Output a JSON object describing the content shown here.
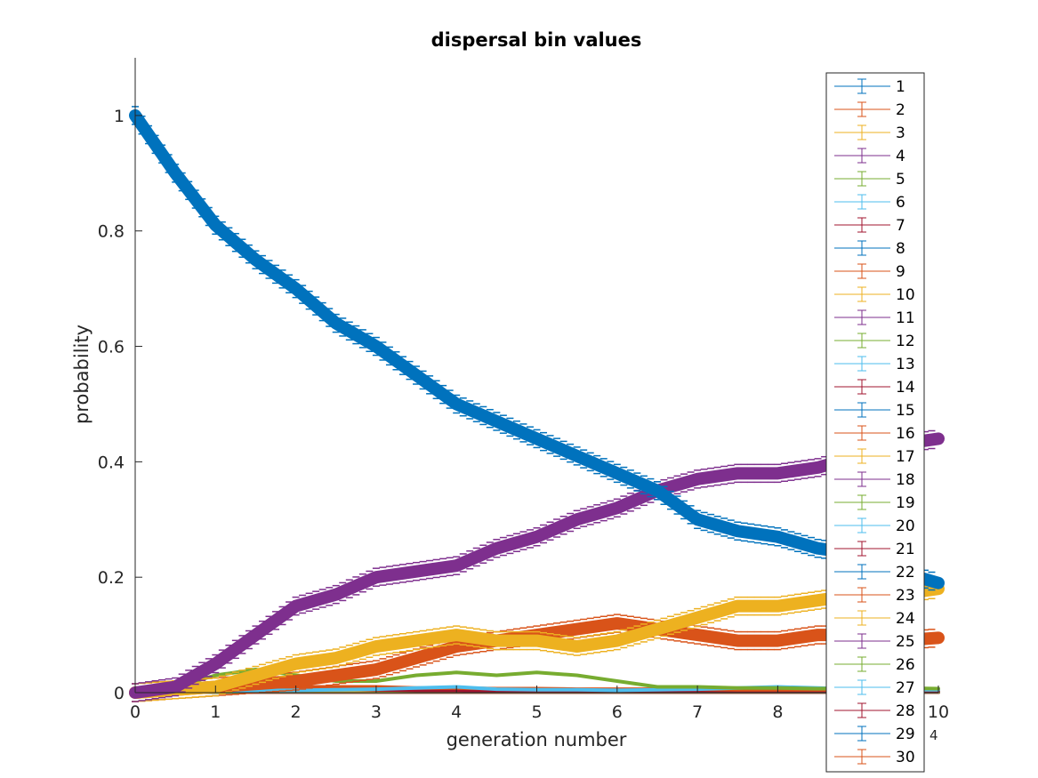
{
  "chart_data": {
    "type": "line",
    "title": "dispersal bin values",
    "xlabel": "generation number",
    "ylabel": "probability",
    "x_exponent_label": "4",
    "x_scale_note": "x values are in units of 10^4 generations",
    "xlim": [
      0,
      10
    ],
    "ylim": [
      0,
      1.1
    ],
    "xticks": [
      "0",
      "1",
      "2",
      "3",
      "4",
      "5",
      "6",
      "7",
      "8",
      "9",
      "10"
    ],
    "yticks": [
      "0",
      "0.2",
      "0.4",
      "0.6",
      "0.8",
      "1"
    ],
    "legend_position": "right (overlapping plot)",
    "x": [
      0,
      0.5,
      1,
      1.5,
      2,
      2.5,
      3,
      3.5,
      4,
      4.5,
      5,
      5.5,
      6,
      6.5,
      7,
      7.5,
      8,
      8.5,
      9,
      9.5,
      10
    ],
    "series": [
      {
        "name": "1",
        "color": "#0072BD",
        "values": [
          1.0,
          0.9,
          0.81,
          0.75,
          0.7,
          0.64,
          0.6,
          0.55,
          0.5,
          0.47,
          0.44,
          0.41,
          0.38,
          0.35,
          0.3,
          0.28,
          0.27,
          0.25,
          0.24,
          0.21,
          0.19
        ]
      },
      {
        "name": "2",
        "color": "#D95319",
        "values": [
          0,
          0.003,
          0.005,
          0.008,
          0.01,
          0.01,
          0.01,
          0.008,
          0.008,
          0.007,
          0.007,
          0.006,
          0.006,
          0.006,
          0.006,
          0.005,
          0.005,
          0.005,
          0.005,
          0.005,
          0.005
        ]
      },
      {
        "name": "3",
        "color": "#EDB120",
        "values": [
          0,
          0.005,
          0.01,
          0.03,
          0.05,
          0.06,
          0.08,
          0.09,
          0.1,
          0.09,
          0.09,
          0.08,
          0.09,
          0.11,
          0.13,
          0.15,
          0.15,
          0.16,
          0.17,
          0.17,
          0.18
        ]
      },
      {
        "name": "4",
        "color": "#7E2F8E",
        "values": [
          0,
          0.01,
          0.05,
          0.1,
          0.15,
          0.17,
          0.2,
          0.21,
          0.22,
          0.25,
          0.27,
          0.3,
          0.32,
          0.35,
          0.37,
          0.38,
          0.38,
          0.39,
          0.41,
          0.43,
          0.44
        ]
      },
      {
        "name": "5",
        "color": "#77AC30",
        "values": [
          0,
          0.01,
          0.03,
          0.04,
          0.03,
          0.02,
          0.02,
          0.03,
          0.035,
          0.03,
          0.035,
          0.03,
          0.02,
          0.01,
          0.01,
          0.008,
          0.008,
          0.007,
          0.008,
          0.008,
          0.007
        ]
      },
      {
        "name": "6",
        "color": "#4DBEEE",
        "values": [
          0,
          0.002,
          0.003,
          0.004,
          0.004,
          0.005,
          0.006,
          0.008,
          0.01,
          0.006,
          0.005,
          0.005,
          0.004,
          0.005,
          0.006,
          0.008,
          0.01,
          0.008,
          0.006,
          0.005,
          0.005
        ]
      },
      {
        "name": "7",
        "color": "#A2142F",
        "values": [
          0,
          0.002,
          0.004,
          0.006,
          0.008,
          0.006,
          0.005,
          0.004,
          0.004,
          0.003,
          0.003,
          0.003,
          0.003,
          0.003,
          0.003,
          0.003,
          0.003,
          0.003,
          0.003,
          0.003,
          0.003
        ]
      },
      {
        "name": "8",
        "color": "#0072BD",
        "values": [
          0,
          0.001,
          0.002,
          0.002,
          0.002,
          0.002,
          0.002,
          0.002,
          0.002,
          0.002,
          0.002,
          0.002,
          0.002,
          0.002,
          0.002,
          0.002,
          0.002,
          0.002,
          0.002,
          0.002,
          0.002
        ]
      },
      {
        "name": "9",
        "color": "#D95319",
        "values": [
          0,
          0.005,
          0.01,
          0.015,
          0.02,
          0.03,
          0.04,
          0.06,
          0.08,
          0.09,
          0.1,
          0.11,
          0.12,
          0.11,
          0.1,
          0.09,
          0.09,
          0.1,
          0.1,
          0.09,
          0.095
        ]
      },
      {
        "name": "10",
        "color": "#EDB120",
        "values": [
          0,
          0.001,
          0.002,
          0.003,
          0.003,
          0.003,
          0.004,
          0.004,
          0.004,
          0.004,
          0.004,
          0.004,
          0.004,
          0.004,
          0.004,
          0.004,
          0.004,
          0.004,
          0.004,
          0.004,
          0.004
        ]
      },
      {
        "name": "11",
        "color": "#7E2F8E",
        "values": [
          0,
          0.001,
          0.001,
          0.002,
          0.002,
          0.002,
          0.002,
          0.002,
          0.002,
          0.002,
          0.002,
          0.002,
          0.002,
          0.002,
          0.002,
          0.002,
          0.002,
          0.002,
          0.002,
          0.002,
          0.002
        ]
      },
      {
        "name": "12",
        "color": "#77AC30",
        "values": [
          0,
          0.001,
          0.001,
          0.002,
          0.002,
          0.002,
          0.002,
          0.002,
          0.002,
          0.002,
          0.002,
          0.002,
          0.002,
          0.002,
          0.002,
          0.002,
          0.002,
          0.002,
          0.002,
          0.002,
          0.002
        ]
      },
      {
        "name": "13",
        "color": "#4DBEEE",
        "values": [
          0,
          0.001,
          0.001,
          0.001,
          0.001,
          0.001,
          0.001,
          0.001,
          0.001,
          0.001,
          0.001,
          0.001,
          0.001,
          0.001,
          0.001,
          0.001,
          0.001,
          0.001,
          0.001,
          0.001,
          0.001
        ]
      },
      {
        "name": "14",
        "color": "#A2142F",
        "values": [
          0,
          0.001,
          0.001,
          0.001,
          0.001,
          0.001,
          0.001,
          0.001,
          0.001,
          0.001,
          0.001,
          0.001,
          0.001,
          0.001,
          0.001,
          0.001,
          0.001,
          0.001,
          0.001,
          0.001,
          0.001
        ]
      },
      {
        "name": "15",
        "color": "#0072BD",
        "values": [
          0,
          0.001,
          0.001,
          0.001,
          0.001,
          0.001,
          0.001,
          0.001,
          0.001,
          0.001,
          0.001,
          0.001,
          0.001,
          0.001,
          0.001,
          0.001,
          0.001,
          0.001,
          0.001,
          0.001,
          0.001
        ]
      },
      {
        "name": "16",
        "color": "#D95319",
        "values": [
          0,
          0.001,
          0.001,
          0.001,
          0.001,
          0.001,
          0.001,
          0.001,
          0.001,
          0.001,
          0.001,
          0.001,
          0.001,
          0.001,
          0.001,
          0.001,
          0.001,
          0.001,
          0.001,
          0.001,
          0.001
        ]
      },
      {
        "name": "17",
        "color": "#EDB120",
        "values": [
          0,
          0.001,
          0.001,
          0.001,
          0.001,
          0.001,
          0.001,
          0.001,
          0.001,
          0.001,
          0.001,
          0.001,
          0.001,
          0.001,
          0.001,
          0.001,
          0.001,
          0.001,
          0.001,
          0.001,
          0.001
        ]
      },
      {
        "name": "18",
        "color": "#7E2F8E",
        "values": [
          0,
          0.001,
          0.001,
          0.001,
          0.001,
          0.001,
          0.001,
          0.001,
          0.001,
          0.001,
          0.001,
          0.001,
          0.001,
          0.001,
          0.001,
          0.001,
          0.001,
          0.001,
          0.001,
          0.001,
          0.001
        ]
      },
      {
        "name": "19",
        "color": "#77AC30",
        "values": [
          0,
          0.001,
          0.001,
          0.001,
          0.001,
          0.001,
          0.001,
          0.001,
          0.001,
          0.001,
          0.001,
          0.001,
          0.001,
          0.001,
          0.001,
          0.001,
          0.001,
          0.001,
          0.001,
          0.001,
          0.001
        ]
      },
      {
        "name": "20",
        "color": "#4DBEEE",
        "values": [
          0,
          0.001,
          0.001,
          0.001,
          0.001,
          0.001,
          0.001,
          0.001,
          0.001,
          0.001,
          0.001,
          0.001,
          0.001,
          0.001,
          0.001,
          0.001,
          0.001,
          0.001,
          0.001,
          0.001,
          0.001
        ]
      },
      {
        "name": "21",
        "color": "#A2142F",
        "values": [
          0,
          0.001,
          0.001,
          0.001,
          0.001,
          0.001,
          0.001,
          0.001,
          0.001,
          0.001,
          0.001,
          0.001,
          0.001,
          0.001,
          0.001,
          0.001,
          0.001,
          0.001,
          0.001,
          0.001,
          0.001
        ]
      },
      {
        "name": "22",
        "color": "#0072BD",
        "values": [
          0,
          0.001,
          0.001,
          0.001,
          0.001,
          0.001,
          0.001,
          0.001,
          0.001,
          0.001,
          0.001,
          0.001,
          0.001,
          0.001,
          0.001,
          0.001,
          0.001,
          0.001,
          0.001,
          0.001,
          0.001
        ]
      },
      {
        "name": "23",
        "color": "#D95319",
        "values": [
          0,
          0.001,
          0.001,
          0.001,
          0.001,
          0.001,
          0.001,
          0.001,
          0.001,
          0.001,
          0.001,
          0.001,
          0.001,
          0.001,
          0.001,
          0.001,
          0.001,
          0.001,
          0.001,
          0.001,
          0.001
        ]
      },
      {
        "name": "24",
        "color": "#EDB120",
        "values": [
          0,
          0.001,
          0.001,
          0.001,
          0.001,
          0.001,
          0.001,
          0.001,
          0.001,
          0.001,
          0.001,
          0.001,
          0.001,
          0.001,
          0.001,
          0.001,
          0.001,
          0.001,
          0.001,
          0.001,
          0.001
        ]
      },
      {
        "name": "25",
        "color": "#7E2F8E",
        "values": [
          0,
          0.001,
          0.001,
          0.001,
          0.001,
          0.001,
          0.001,
          0.001,
          0.001,
          0.001,
          0.001,
          0.001,
          0.001,
          0.001,
          0.001,
          0.001,
          0.001,
          0.001,
          0.001,
          0.001,
          0.001
        ]
      },
      {
        "name": "26",
        "color": "#77AC30",
        "values": [
          0,
          0.001,
          0.001,
          0.001,
          0.001,
          0.001,
          0.001,
          0.001,
          0.001,
          0.001,
          0.001,
          0.001,
          0.001,
          0.001,
          0.001,
          0.001,
          0.001,
          0.001,
          0.001,
          0.001,
          0.001
        ]
      },
      {
        "name": "27",
        "color": "#4DBEEE",
        "values": [
          0,
          0.001,
          0.001,
          0.001,
          0.001,
          0.001,
          0.001,
          0.001,
          0.001,
          0.001,
          0.001,
          0.001,
          0.001,
          0.001,
          0.001,
          0.001,
          0.001,
          0.001,
          0.001,
          0.001,
          0.001
        ]
      },
      {
        "name": "28",
        "color": "#A2142F",
        "values": [
          0,
          0.001,
          0.001,
          0.001,
          0.001,
          0.001,
          0.001,
          0.001,
          0.001,
          0.001,
          0.001,
          0.001,
          0.001,
          0.001,
          0.001,
          0.001,
          0.001,
          0.001,
          0.001,
          0.001,
          0.001
        ]
      },
      {
        "name": "29",
        "color": "#0072BD",
        "values": [
          0,
          0.001,
          0.001,
          0.001,
          0.001,
          0.001,
          0.001,
          0.001,
          0.001,
          0.001,
          0.001,
          0.001,
          0.001,
          0.001,
          0.001,
          0.001,
          0.001,
          0.001,
          0.001,
          0.001,
          0.001
        ]
      },
      {
        "name": "30",
        "color": "#D95319",
        "values": [
          0,
          0.001,
          0.001,
          0.001,
          0.001,
          0.001,
          0.001,
          0.001,
          0.001,
          0.001,
          0.001,
          0.001,
          0.001,
          0.001,
          0.001,
          0.001,
          0.001,
          0.001,
          0.001,
          0.001,
          0.001
        ]
      }
    ]
  }
}
